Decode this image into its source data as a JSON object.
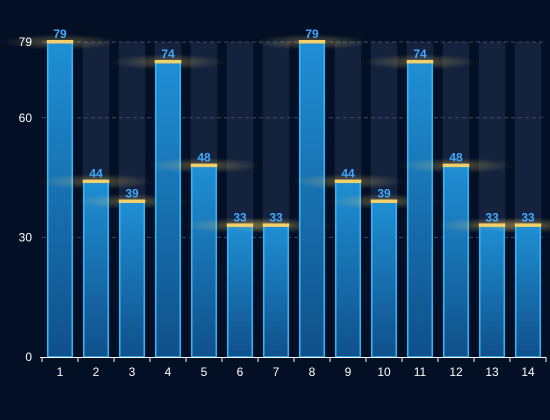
{
  "chart_data": {
    "type": "bar",
    "title": "",
    "xlabel": "",
    "ylabel": "",
    "categories": [
      "1",
      "2",
      "3",
      "4",
      "5",
      "6",
      "7",
      "8",
      "9",
      "10",
      "11",
      "12",
      "13",
      "14"
    ],
    "values": [
      79,
      44,
      39,
      74,
      48,
      33,
      33,
      79,
      44,
      39,
      74,
      48,
      33,
      33
    ],
    "ylim": [
      0,
      79
    ],
    "yticks": [
      "0",
      "30",
      "60",
      "79"
    ],
    "ytick_values": [
      0,
      30,
      60,
      79
    ],
    "grid": "horizontal-dashed",
    "legend": "none",
    "colors": {
      "background": "#020f24",
      "bar_fill_top": "#1f8fd4",
      "bar_fill_bottom": "#10508a",
      "bar_border": "#32b6ff",
      "bar_cap": "#f4d06a",
      "value_label": "#41a9ff",
      "track": "#1b2a45",
      "axis_text": "#ffffff",
      "grid": "#3a4d6a"
    }
  }
}
